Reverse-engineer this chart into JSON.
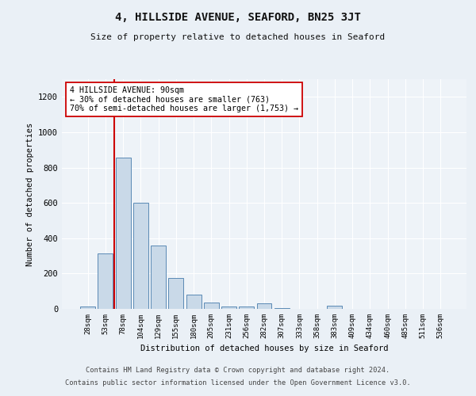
{
  "title": "4, HILLSIDE AVENUE, SEAFORD, BN25 3JT",
  "subtitle": "Size of property relative to detached houses in Seaford",
  "xlabel": "Distribution of detached houses by size in Seaford",
  "ylabel": "Number of detached properties",
  "categories": [
    "28sqm",
    "53sqm",
    "78sqm",
    "104sqm",
    "129sqm",
    "155sqm",
    "180sqm",
    "205sqm",
    "231sqm",
    "256sqm",
    "282sqm",
    "307sqm",
    "333sqm",
    "358sqm",
    "383sqm",
    "409sqm",
    "434sqm",
    "460sqm",
    "485sqm",
    "511sqm",
    "536sqm"
  ],
  "values": [
    15,
    315,
    855,
    600,
    360,
    175,
    80,
    35,
    15,
    15,
    30,
    5,
    0,
    0,
    20,
    0,
    0,
    0,
    0,
    0,
    0
  ],
  "bar_color": "#c9d9e8",
  "bar_edge_color": "#5a8ab5",
  "vline_x": 1.5,
  "vline_color": "#cc0000",
  "annotation_text": "4 HILLSIDE AVENUE: 90sqm\n← 30% of detached houses are smaller (763)\n70% of semi-detached houses are larger (1,753) →",
  "annotation_box_color": "#ffffff",
  "annotation_box_edge_color": "#cc0000",
  "ylim": [
    0,
    1300
  ],
  "yticks": [
    0,
    200,
    400,
    600,
    800,
    1000,
    1200
  ],
  "footer1": "Contains HM Land Registry data © Crown copyright and database right 2024.",
  "footer2": "Contains public sector information licensed under the Open Government Licence v3.0.",
  "bg_color": "#eaf0f6",
  "plot_bg_color": "#eef3f8"
}
